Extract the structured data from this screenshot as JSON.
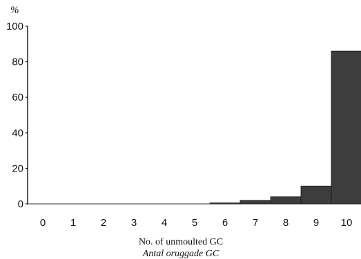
{
  "chart_data": {
    "type": "bar",
    "ylabel": "%",
    "xlabel": "No. of unmoulted GC",
    "xlabel_sub": "Antal oruggade GC",
    "ylim": [
      0,
      100
    ],
    "yticks": [
      "0",
      "20",
      "40",
      "60",
      "80",
      "100"
    ],
    "categories": [
      "0",
      "1",
      "2",
      "3",
      "4",
      "5",
      "6",
      "7",
      "8",
      "9",
      "10"
    ],
    "values": [
      0,
      0,
      0,
      0,
      0,
      0,
      0.5,
      2,
      4,
      10,
      86
    ],
    "bar_color": "#3d3d3d",
    "grid": false,
    "legend": "none"
  }
}
